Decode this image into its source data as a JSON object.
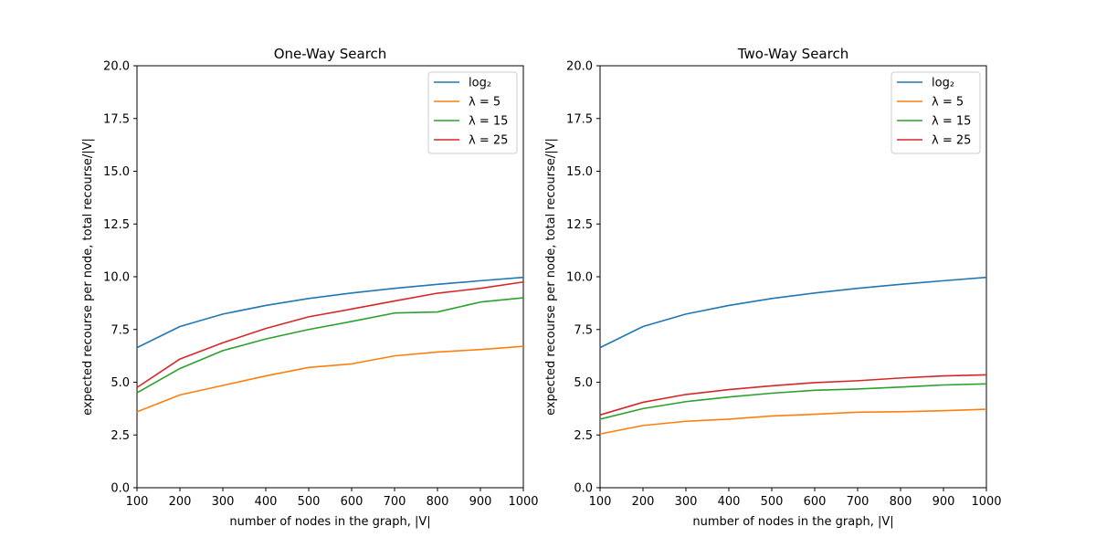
{
  "chart_data": [
    {
      "type": "line",
      "title": "One-Way Search",
      "xlabel": "number of nodes in the graph, |V|",
      "ylabel": "expected recourse per node, total recourse/|V|",
      "xlim": [
        100,
        1000
      ],
      "ylim": [
        0,
        20
      ],
      "xticks": [
        100,
        200,
        300,
        400,
        500,
        600,
        700,
        800,
        900,
        1000
      ],
      "yticks": [
        0,
        2.5,
        5,
        7.5,
        10,
        12.5,
        15,
        17.5,
        20
      ],
      "ytick_labels": [
        "0.0",
        "2.5",
        "5.0",
        "7.5",
        "10.0",
        "12.5",
        "15.0",
        "17.5",
        "20.0"
      ],
      "legend_position": "top-right",
      "grid": false,
      "x": [
        100,
        200,
        300,
        400,
        500,
        600,
        700,
        800,
        900,
        1000
      ],
      "series": [
        {
          "name": "log₂",
          "color": "#1f77b4",
          "values": [
            6.64,
            7.64,
            8.23,
            8.64,
            8.97,
            9.23,
            9.45,
            9.64,
            9.81,
            9.97
          ]
        },
        {
          "name": "λ = 5",
          "color": "#ff7f0e",
          "values": [
            3.6,
            4.4,
            4.85,
            5.3,
            5.7,
            5.87,
            6.25,
            6.43,
            6.55,
            6.7
          ]
        },
        {
          "name": "λ = 15",
          "color": "#2ca02c",
          "values": [
            4.5,
            5.65,
            6.5,
            7.05,
            7.5,
            7.88,
            8.28,
            8.33,
            8.8,
            9.0
          ]
        },
        {
          "name": "λ = 25",
          "color": "#d62728",
          "values": [
            4.75,
            6.1,
            6.87,
            7.55,
            8.1,
            8.47,
            8.85,
            9.22,
            9.45,
            9.75
          ]
        }
      ]
    },
    {
      "type": "line",
      "title": "Two-Way Search",
      "xlabel": "number of nodes in the graph, |V|",
      "ylabel": "expected recourse per node, total recourse/|V|",
      "xlim": [
        100,
        1000
      ],
      "ylim": [
        0,
        20
      ],
      "xticks": [
        100,
        200,
        300,
        400,
        500,
        600,
        700,
        800,
        900,
        1000
      ],
      "yticks": [
        0,
        2.5,
        5,
        7.5,
        10,
        12.5,
        15,
        17.5,
        20
      ],
      "ytick_labels": [
        "0.0",
        "2.5",
        "5.0",
        "7.5",
        "10.0",
        "12.5",
        "15.0",
        "17.5",
        "20.0"
      ],
      "legend_position": "top-right",
      "grid": false,
      "x": [
        100,
        200,
        300,
        400,
        500,
        600,
        700,
        800,
        900,
        1000
      ],
      "series": [
        {
          "name": "log₂",
          "color": "#1f77b4",
          "values": [
            6.64,
            7.64,
            8.23,
            8.64,
            8.97,
            9.23,
            9.45,
            9.64,
            9.81,
            9.97
          ]
        },
        {
          "name": "λ = 5",
          "color": "#ff7f0e",
          "values": [
            2.55,
            2.95,
            3.15,
            3.25,
            3.4,
            3.48,
            3.58,
            3.6,
            3.65,
            3.72
          ]
        },
        {
          "name": "λ = 15",
          "color": "#2ca02c",
          "values": [
            3.25,
            3.75,
            4.08,
            4.3,
            4.48,
            4.62,
            4.68,
            4.77,
            4.87,
            4.92
          ]
        },
        {
          "name": "λ = 25",
          "color": "#d62728",
          "values": [
            3.45,
            4.05,
            4.42,
            4.65,
            4.83,
            4.98,
            5.07,
            5.2,
            5.3,
            5.35
          ]
        }
      ]
    }
  ]
}
